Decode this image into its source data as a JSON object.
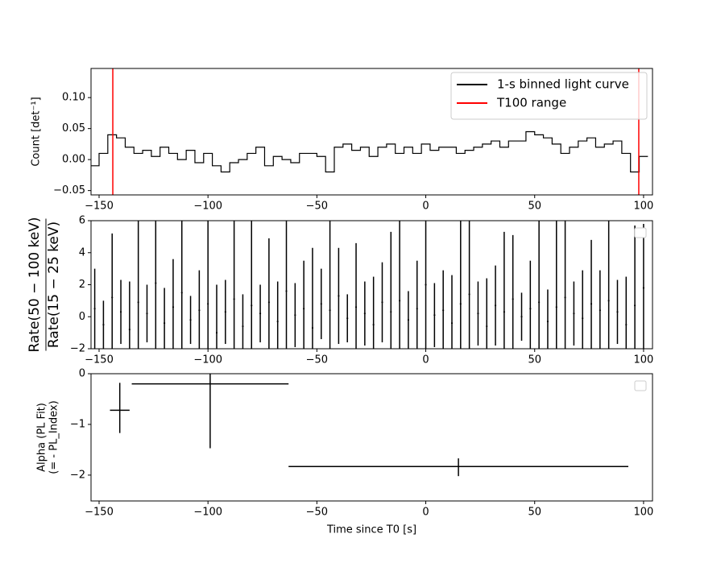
{
  "chart_data": [
    {
      "type": "line",
      "ylabel": "Count [det⁻¹]",
      "xlim": [
        -153.7,
        104.1
      ],
      "ylim": [
        -0.057,
        0.147
      ],
      "xticks": [
        {
          "value": -150,
          "label": "−150"
        },
        {
          "value": -100,
          "label": "−100"
        },
        {
          "value": -50,
          "label": "−50"
        },
        0,
        50,
        100
      ],
      "yticks": [
        {
          "value": -0.05,
          "label": "−0.05"
        },
        {
          "value": 0,
          "label": "0.00"
        },
        0.05,
        {
          "value": 0.1,
          "label": "0.10"
        }
      ],
      "legend": "upper right",
      "x": [
        -152,
        -148,
        -144,
        -140,
        -136,
        -132,
        -128,
        -124,
        -120,
        -116,
        -112,
        -108,
        -104,
        -100,
        -96,
        -92,
        -88,
        -84,
        -80,
        -76,
        -72,
        -68,
        -64,
        -60,
        -56,
        -52,
        -48,
        -44,
        -40,
        -36,
        -32,
        -28,
        -24,
        -20,
        -16,
        -12,
        -8,
        -4,
        0,
        4,
        8,
        12,
        16,
        20,
        24,
        28,
        32,
        36,
        40,
        44,
        48,
        52,
        56,
        60,
        64,
        68,
        72,
        76,
        80,
        84,
        88,
        92,
        96,
        100
      ],
      "series": [
        {
          "name": "1-s binned light curve",
          "color": "#000000",
          "values": [
            -0.01,
            0.01,
            0.04,
            0.035,
            0.02,
            0.01,
            0.015,
            0.005,
            0.02,
            0.01,
            0.0,
            0.015,
            -0.005,
            0.01,
            -0.01,
            -0.02,
            -0.005,
            0.0,
            0.01,
            0.02,
            -0.01,
            0.005,
            0.0,
            -0.005,
            0.01,
            0.01,
            0.005,
            -0.02,
            0.02,
            0.025,
            0.015,
            0.02,
            0.005,
            0.02,
            0.025,
            0.01,
            0.02,
            0.01,
            0.025,
            0.015,
            0.02,
            0.02,
            0.01,
            0.015,
            0.02,
            0.025,
            0.03,
            0.02,
            0.03,
            0.03,
            0.045,
            0.04,
            0.035,
            0.025,
            0.01,
            0.02,
            0.03,
            0.035,
            0.02,
            0.025,
            0.03,
            0.01,
            -0.02,
            0.005
          ]
        }
      ],
      "vlines": {
        "name": "T100 range",
        "color": "#ff0000",
        "x": [
          -143.7,
          97.8
        ]
      }
    },
    {
      "type": "errorbar",
      "ylabel": [
        "Rate(50 − 100 keV)",
        "Rate(15 − 25 keV)"
      ],
      "xlim": [
        -153.7,
        104.1
      ],
      "ylim": [
        -2,
        6
      ],
      "xticks": [
        {
          "value": -150,
          "label": "−150"
        },
        {
          "value": -100,
          "label": "−100"
        },
        {
          "value": -50,
          "label": "−50"
        },
        0,
        50,
        100
      ],
      "yticks": [
        {
          "value": -2,
          "label": "−2"
        },
        0,
        2,
        4,
        6
      ],
      "legend": "upper right",
      "color": "#000000",
      "x": [
        -152,
        -148,
        -144,
        -140,
        -136,
        -132,
        -128,
        -124,
        -120,
        -116,
        -112,
        -108,
        -104,
        -100,
        -96,
        -92,
        -88,
        -84,
        -80,
        -76,
        -72,
        -68,
        -64,
        -60,
        -56,
        -52,
        -48,
        -44,
        -40,
        -36,
        -32,
        -28,
        -24,
        -20,
        -16,
        -12,
        -8,
        -4,
        0,
        4,
        8,
        12,
        16,
        20,
        24,
        28,
        32,
        36,
        40,
        44,
        48,
        52,
        56,
        60,
        64,
        68,
        72,
        76,
        80,
        84,
        88,
        92,
        96,
        100
      ],
      "values": [
        0.5,
        -0.5,
        1.2,
        0.3,
        -0.8,
        0.9,
        0.2,
        2.1,
        -0.4,
        0.6,
        1.5,
        -0.2,
        0.4,
        0.8,
        -1.0,
        0.3,
        1.1,
        -0.6,
        0.7,
        0.2,
        0.9,
        -0.3,
        1.6,
        0.1,
        0.5,
        -0.7,
        0.8,
        0.4,
        1.3,
        -0.1,
        0.6,
        0.2,
        -0.5,
        0.9,
        0.3,
        1.0,
        -0.2,
        0.5,
        2.0,
        0.1,
        0.4,
        -0.4,
        0.8,
        1.4,
        0.2,
        -0.6,
        0.7,
        0.3,
        1.1,
        0.0,
        0.5,
        0.9,
        -0.3,
        0.6,
        1.2,
        0.2,
        -0.1,
        0.8,
        0.4,
        1.0,
        0.3,
        -0.5,
        0.7,
        1.8
      ],
      "yerr": [
        2.5,
        1.5,
        4,
        2,
        3,
        6,
        1.8,
        5,
        2.2,
        3,
        7,
        1.5,
        2.5,
        8,
        3,
        2,
        5,
        2,
        6,
        1.8,
        4,
        2.5,
        7,
        2,
        3,
        5,
        2.2,
        6,
        3,
        1.5,
        4,
        2,
        3,
        2.5,
        5,
        7,
        1.8,
        3,
        4,
        2,
        2.5,
        3,
        6,
        8,
        2,
        3,
        2.5,
        5,
        4,
        1.5,
        3,
        6,
        2,
        7,
        5,
        2,
        3,
        4,
        2.5,
        6,
        2,
        3,
        5,
        4
      ]
    },
    {
      "type": "errorbar",
      "ylabel": [
        "Alpha (PL Fit)",
        "(= - PL_Index)"
      ],
      "xlabel": "Time since T0 [s]",
      "xlim": [
        -153.7,
        104.1
      ],
      "ylim": [
        -2.51,
        0
      ],
      "xticks": [
        {
          "value": -150,
          "label": "−150"
        },
        {
          "value": -100,
          "label": "−100"
        },
        {
          "value": -50,
          "label": "−50"
        },
        0,
        50,
        100
      ],
      "yticks": [
        {
          "value": -2,
          "label": "−2"
        },
        {
          "value": -1,
          "label": "−1"
        },
        0
      ],
      "legend": "upper right",
      "color": "#000000",
      "x": [
        -140.5,
        -99,
        15
      ],
      "xerr": [
        4.5,
        36,
        78
      ],
      "values": [
        -0.72,
        -0.2,
        -1.83
      ],
      "yerr_minus": [
        0.45,
        1.27,
        0.19
      ],
      "yerr_plus": [
        0.54,
        0.2,
        0.16
      ]
    }
  ]
}
